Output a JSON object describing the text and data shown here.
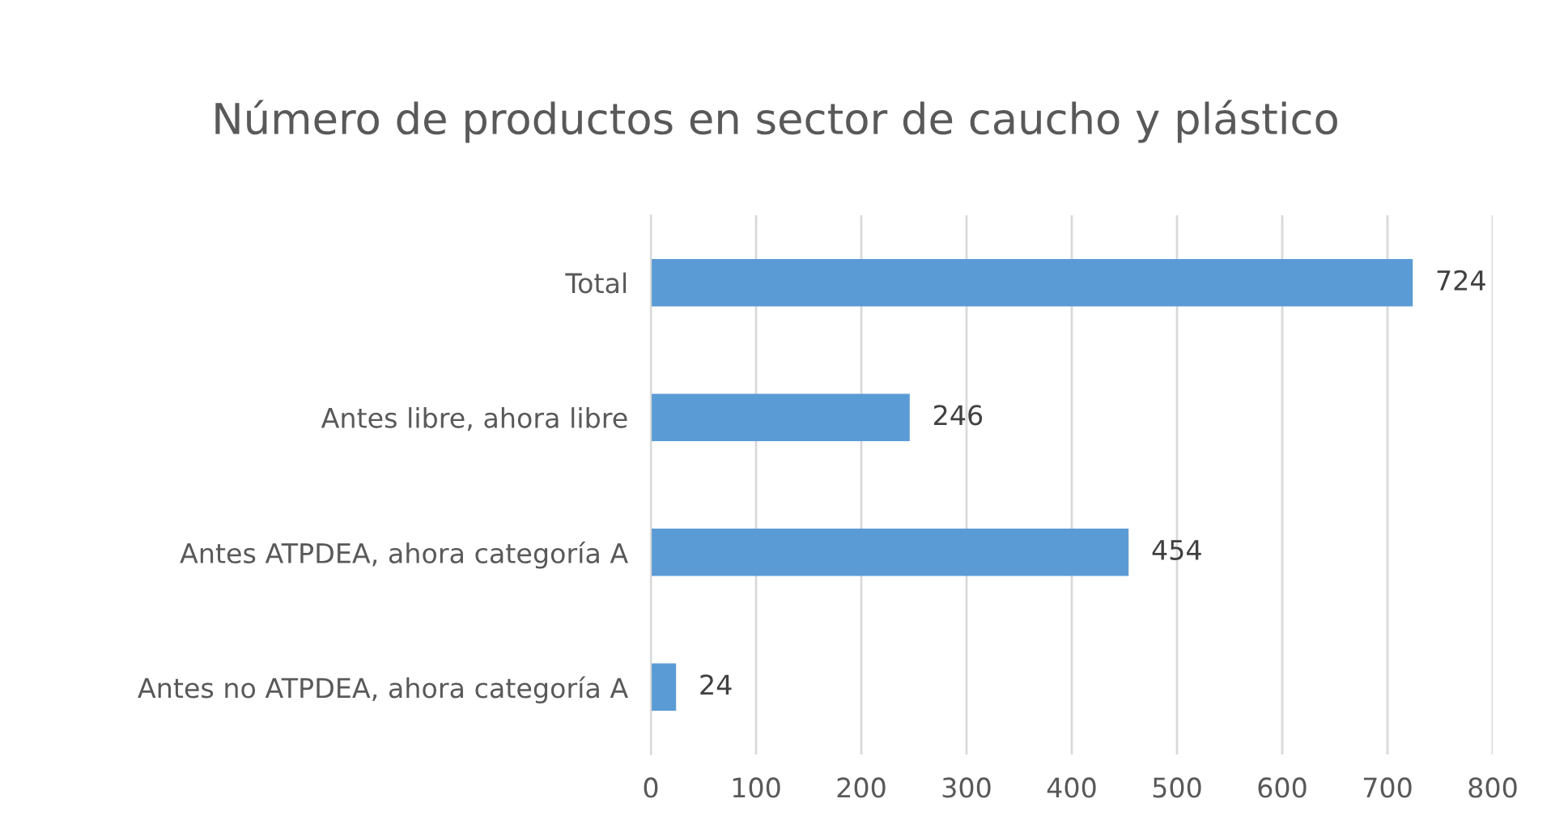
{
  "chart_data": {
    "type": "bar",
    "orientation": "horizontal",
    "title": "Número de productos en sector de caucho y plástico",
    "categories": [
      "Total",
      "Antes libre, ahora libre",
      "Antes ATPDEA, ahora categoría A",
      "Antes no ATPDEA, ahora categoría A"
    ],
    "values": [
      724,
      246,
      454,
      24
    ],
    "color": "#5b9bd5",
    "xlim": [
      0,
      800
    ],
    "xticks": [
      0,
      100,
      200,
      300,
      400,
      500,
      600,
      700,
      800
    ],
    "grid": "x",
    "data_labels": true
  }
}
